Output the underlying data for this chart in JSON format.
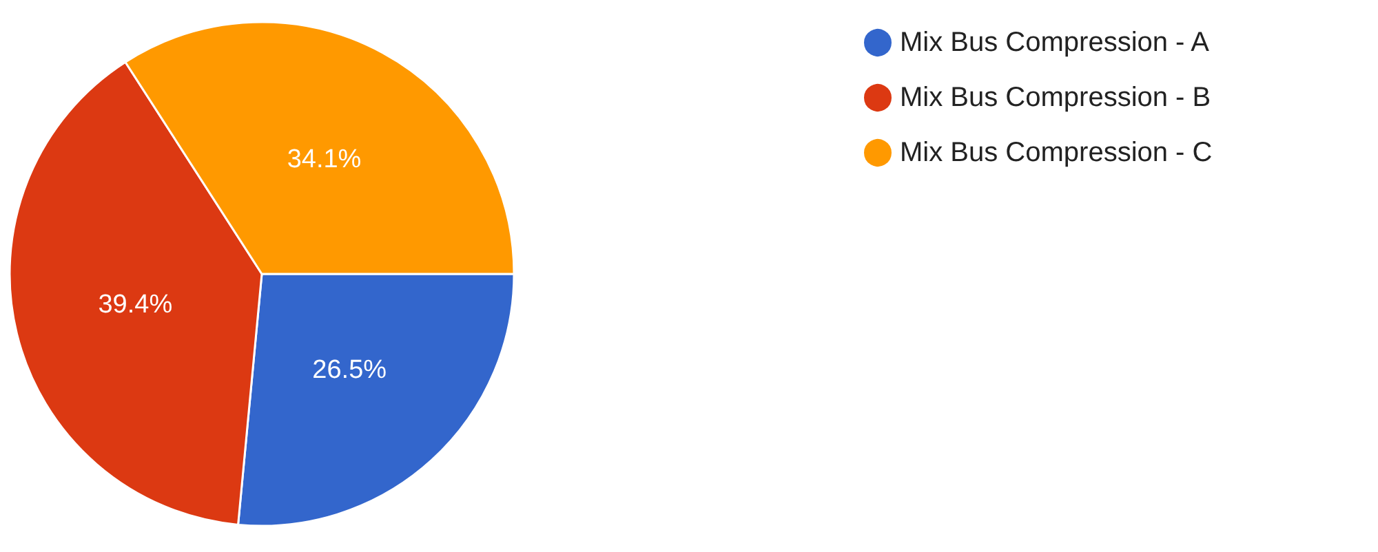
{
  "chart_data": {
    "type": "pie",
    "categories": [
      "Mix Bus Compression - A",
      "Mix Bus Compression - B",
      "Mix Bus Compression - C"
    ],
    "values": [
      26.5,
      39.4,
      34.1
    ],
    "colors": [
      "#3366cc",
      "#dc3912",
      "#ff9900"
    ],
    "value_labels": [
      "26.5%",
      "39.4%",
      "34.1%"
    ],
    "legend": "top right"
  }
}
